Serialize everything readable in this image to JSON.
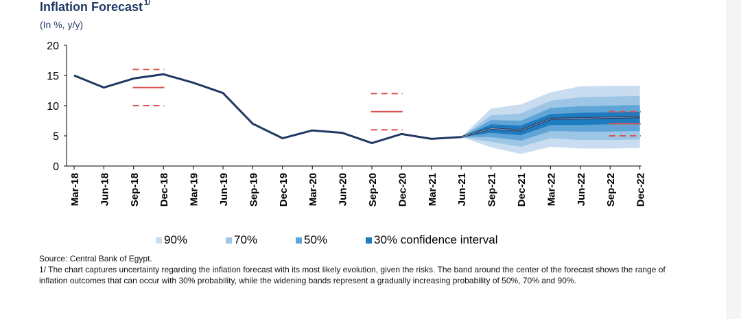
{
  "chart_data": {
    "type": "line",
    "title": "Inflation Forecast",
    "title_footnote": "1/",
    "subtitle": "(In %, y/y)",
    "categories": [
      "Mar-18",
      "Jun-18",
      "Sep-18",
      "Dec-18",
      "Mar-19",
      "Jun-19",
      "Sep-19",
      "Dec-19",
      "Mar-20",
      "Jun-20",
      "Sep-20",
      "Dec-20",
      "Mar-21",
      "Jun-21",
      "Sep-21",
      "Dec-21",
      "Mar-22",
      "Jun-22",
      "Sep-22",
      "Dec-22"
    ],
    "ylim": [
      0,
      20
    ],
    "yticks": [
      0,
      5,
      10,
      15,
      20
    ],
    "series": [
      {
        "values": [
          15.0,
          13.0,
          14.5,
          15.2,
          13.8,
          12.1,
          7.0,
          4.6,
          5.9,
          5.5,
          3.8,
          5.3,
          4.5,
          4.8,
          6.2,
          5.9,
          7.8,
          7.9,
          8.0,
          8.1
        ]
      }
    ],
    "fan_chart": {
      "start_index": 13,
      "median": [
        4.8,
        6.2,
        5.9,
        7.8,
        7.9,
        8.0,
        8.1
      ],
      "bands": [
        {
          "label": "90%",
          "color": "#c9dcf0",
          "lower": [
            4.8,
            3.1,
            2.0,
            3.2,
            2.9,
            2.9,
            3.0
          ],
          "upper": [
            4.8,
            9.5,
            10.2,
            12.2,
            13.2,
            13.3,
            13.3
          ]
        },
        {
          "label": "70%",
          "color": "#9cc5e6",
          "lower": [
            4.8,
            4.0,
            3.2,
            4.6,
            4.3,
            4.3,
            4.4
          ],
          "upper": [
            4.8,
            8.4,
            8.7,
            10.8,
            11.4,
            11.5,
            11.6
          ]
        },
        {
          "label": "50%",
          "color": "#5fa5d6",
          "lower": [
            4.8,
            4.8,
            4.2,
            5.8,
            5.7,
            5.7,
            5.8
          ],
          "upper": [
            4.8,
            7.6,
            7.5,
            9.6,
            9.9,
            10.0,
            10.1
          ]
        },
        {
          "label": "30% confidence interval",
          "color": "#1f7bbf",
          "lower": [
            4.8,
            5.5,
            5.1,
            6.8,
            6.8,
            6.9,
            7.0
          ],
          "upper": [
            4.8,
            6.9,
            6.7,
            8.6,
            8.8,
            8.9,
            9.0
          ]
        }
      ]
    },
    "targets": [
      {
        "x_index": 2.5,
        "center": 13,
        "upper": 16,
        "lower": 10
      },
      {
        "x_index": 10.5,
        "center": 9,
        "upper": 12,
        "lower": 6
      },
      {
        "x_index": 18.5,
        "center": 7,
        "upper": 9,
        "lower": 5
      }
    ],
    "legend": [
      "90%",
      "70%",
      "50%",
      "30% confidence interval"
    ],
    "legend_placement": "bottom",
    "grid": false,
    "colors": {
      "line": "#1f3864",
      "target": "#d9534f",
      "title": "#1f3864"
    }
  },
  "notes": {
    "source": "Source: Central Bank of Egypt.",
    "footnote": "1/ The chart captures uncertainty regarding the inflation forecast with its most likely evolution, given the risks. The band around the center of the forecast shows the range of inflation outcomes that can occur with 30% probability, while the widening bands represent a gradually increasing probability of 50%, 70% and 90%."
  }
}
